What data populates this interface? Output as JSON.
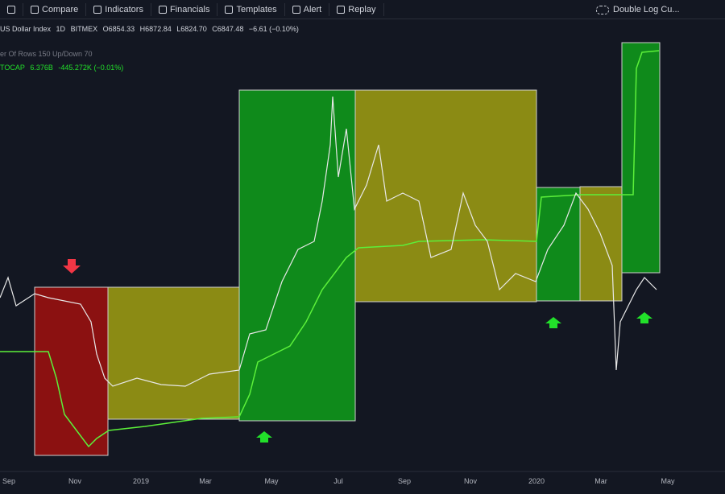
{
  "toolbar": {
    "buttons": [
      "Compare",
      "Indicators",
      "Financials",
      "Templates",
      "Alert",
      "Replay"
    ],
    "chart_style": "Double Log Cu..."
  },
  "legend": {
    "symbol": "US Dollar Index",
    "interval": "1D",
    "exchange": "BITMEX",
    "open": "O6854.33",
    "high": "H6872.84",
    "low": "L6824.70",
    "close": "C6847.48",
    "change": "−6.61 (−0.10%)"
  },
  "indicator_1": {
    "name": "er Of Rows 150 Up/Down 70"
  },
  "indicator_2": {
    "name": "TOCAP",
    "value": "6.376B",
    "change": "-445.272K (−0.01%)"
  },
  "x_axis": [
    "Sep",
    "Nov",
    "2019",
    "Mar",
    "May",
    "Jul",
    "Sep",
    "Nov",
    "2020",
    "Mar",
    "May"
  ]
}
